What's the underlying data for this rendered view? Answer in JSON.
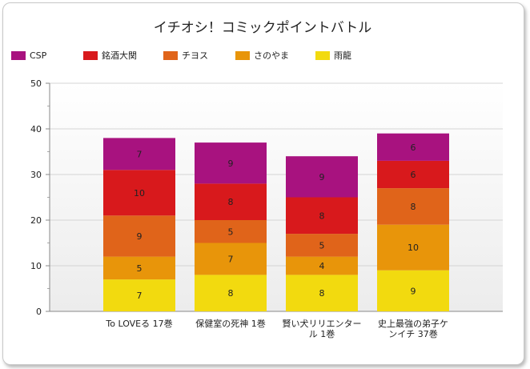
{
  "chart_data": {
    "type": "bar",
    "stacked": true,
    "title": "イチオシ！コミックポイントバトル",
    "legend_position": "top-left",
    "categories": [
      [
        "To LOVEる 17巻"
      ],
      [
        "保健室の死神 1巻"
      ],
      [
        "賢い犬リリエンター",
        "ル 1巻"
      ],
      [
        "史上最強の弟子ケ",
        "ンイチ 37巻"
      ]
    ],
    "series": [
      {
        "name": "雨龍",
        "color": "#f2da0f",
        "values": [
          7,
          8,
          8,
          9
        ]
      },
      {
        "name": "さのやま",
        "color": "#e8950a",
        "values": [
          5,
          7,
          4,
          10
        ]
      },
      {
        "name": "チヨス",
        "color": "#e0641a",
        "values": [
          9,
          5,
          5,
          8
        ]
      },
      {
        "name": "銘酒大関",
        "color": "#d8191c",
        "values": [
          10,
          8,
          8,
          6
        ]
      },
      {
        "name": "CSP",
        "color": "#a8127f",
        "values": [
          7,
          9,
          9,
          6
        ]
      }
    ],
    "legend_order": [
      "CSP",
      "銘酒大関",
      "チヨス",
      "さのやま",
      "雨龍"
    ],
    "ylim": [
      0,
      50
    ],
    "yticks": [
      0,
      10,
      20,
      30,
      40,
      50
    ],
    "xlabel": "",
    "ylabel": "",
    "grid": true
  }
}
